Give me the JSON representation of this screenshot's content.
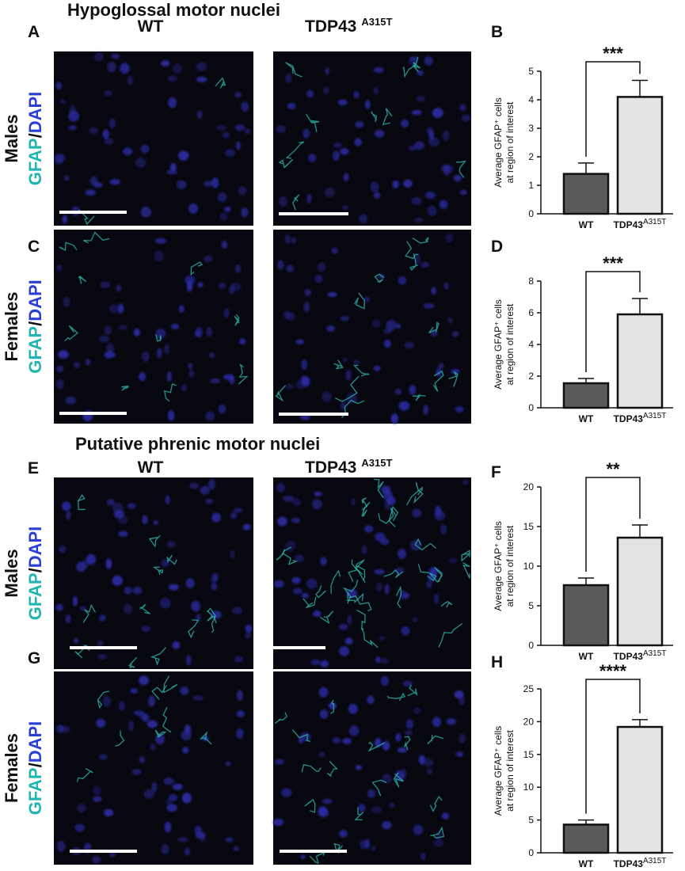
{
  "sections": [
    {
      "title": "Hypoglossal motor nuclei"
    },
    {
      "title": "Putative phrenic motor nuclei"
    }
  ],
  "columns": [
    {
      "label": "WT"
    },
    {
      "label": "TDP43",
      "superscript": "A315T"
    }
  ],
  "image_panels": [
    "A",
    "C",
    "E",
    "G"
  ],
  "rows": [
    {
      "sex": "Males"
    },
    {
      "sex": "Females"
    },
    {
      "sex": "Males"
    },
    {
      "sex": "Females"
    }
  ],
  "stain": {
    "marker": "GFAP",
    "separator": "/",
    "counterstain": "DAPI"
  },
  "chart_data": [
    {
      "type": "bar",
      "panel": "B",
      "ylabel": [
        "Average GFAP⁺ cells",
        "at region  of interest"
      ],
      "categories": [
        "WT",
        "TDP43"
      ],
      "category_superscript": "A315T",
      "values": [
        1.4,
        4.1
      ],
      "errors": [
        0.38,
        0.58
      ],
      "colors": [
        "#5a5a5a",
        "#e3e3e3"
      ],
      "significance": "***",
      "ylim": [
        0,
        5
      ],
      "yticks": [
        0,
        1,
        2,
        3,
        4,
        5
      ]
    },
    {
      "type": "bar",
      "panel": "D",
      "ylabel": [
        "Average GFAP⁺ cells",
        "at region  of interest"
      ],
      "categories": [
        "WT",
        "TDP43"
      ],
      "category_superscript": "A315T",
      "values": [
        1.55,
        5.9
      ],
      "errors": [
        0.3,
        1.0
      ],
      "colors": [
        "#5a5a5a",
        "#e3e3e3"
      ],
      "significance": "***",
      "ylim": [
        0,
        8
      ],
      "yticks": [
        0,
        2,
        4,
        6,
        8
      ]
    },
    {
      "type": "bar",
      "panel": "F",
      "ylabel": [
        "Average GFAP⁺ cells",
        "at region  of interest"
      ],
      "categories": [
        "WT",
        "TDP43"
      ],
      "category_superscript": "A315T",
      "values": [
        7.6,
        13.6
      ],
      "errors": [
        0.9,
        1.6
      ],
      "colors": [
        "#5a5a5a",
        "#e3e3e3"
      ],
      "significance": "**",
      "ylim": [
        0,
        20
      ],
      "yticks": [
        0,
        5,
        10,
        15,
        20
      ]
    },
    {
      "type": "bar",
      "panel": "H",
      "ylabel": [
        "Average GFAP⁺ cells",
        "at region  of interest"
      ],
      "categories": [
        "WT",
        "TDP43"
      ],
      "category_superscript": "A315T",
      "values": [
        4.3,
        19.2
      ],
      "errors": [
        0.7,
        1.1
      ],
      "colors": [
        "#5a5a5a",
        "#e3e3e3"
      ],
      "significance": "****",
      "ylim": [
        0,
        25
      ],
      "yticks": [
        0,
        5,
        10,
        15,
        20,
        25
      ]
    }
  ]
}
